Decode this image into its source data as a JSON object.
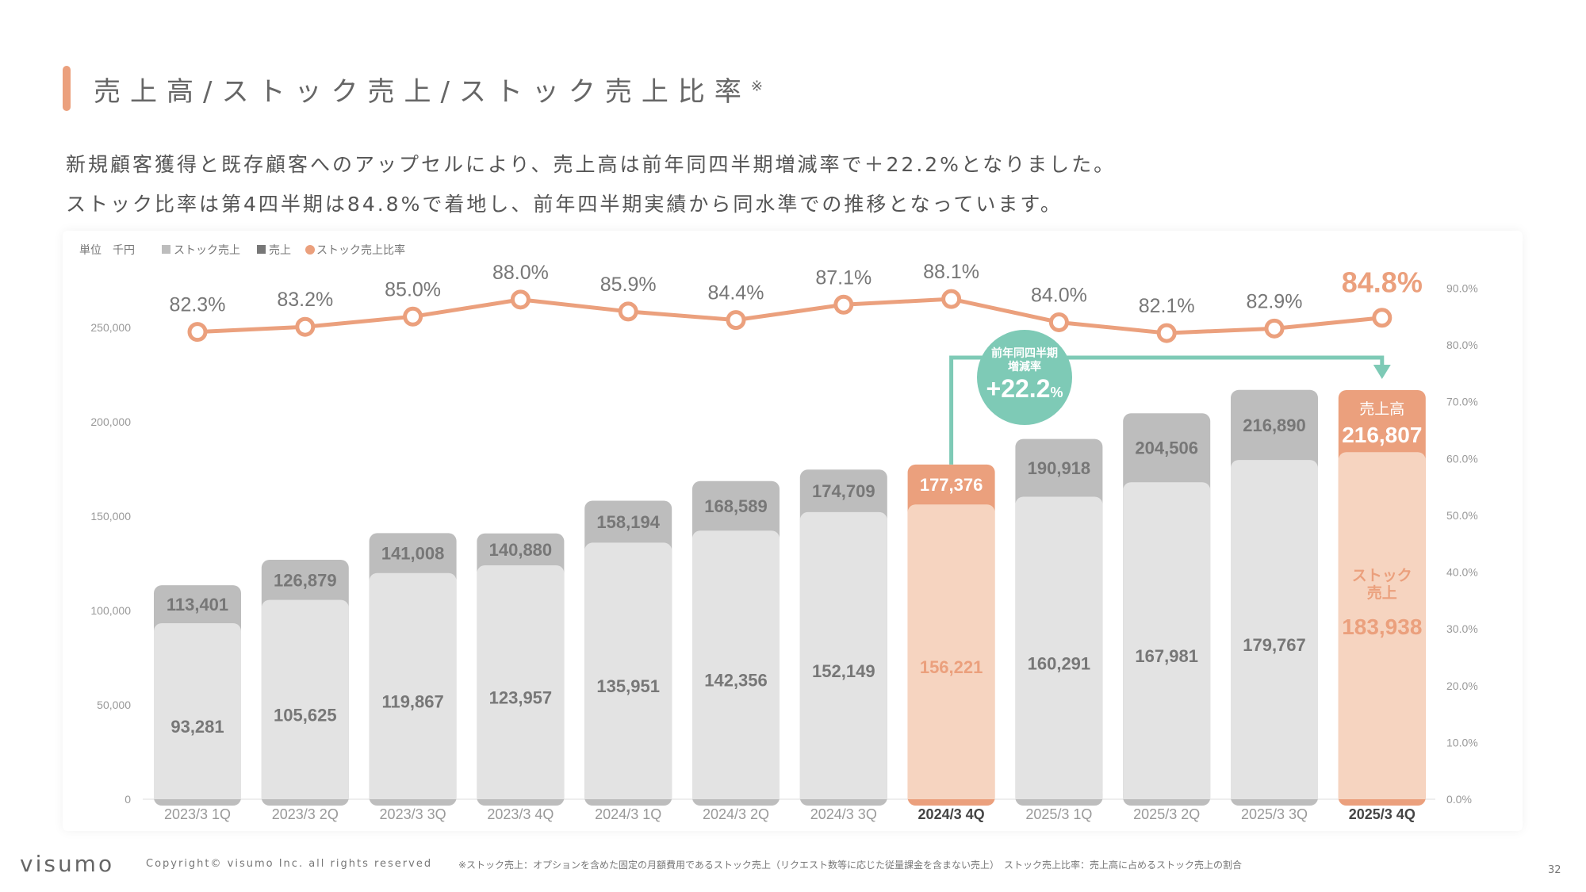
{
  "title": "売上高/ストック売上/ストック売上比率",
  "title_mark": "※",
  "subtitle_lines": [
    "新規顧客獲得と既存顧客へのアップセルにより、売上高は前年同四半期増減率で＋22.2%となりました。",
    "ストック比率は第4四半期は84.8%で着地し、前年四半期実績から同水準での推移となっています。"
  ],
  "legend": {
    "unit": "単位　千円",
    "stock": "ストック売上",
    "sales": "売上",
    "ratio": "ストック売上比率"
  },
  "annotation": {
    "line1": "前年同四半期",
    "line2": "増減率",
    "value": "+22.2",
    "pct": "%"
  },
  "last_bar": {
    "sales_label": "売上高",
    "stock_label1": "ストック",
    "stock_label2": "売上"
  },
  "colors": {
    "orange": "#eba07d",
    "light_orange": "#f6d4c0",
    "gray": "#bdbdbd",
    "light_gray": "#e3e3e3",
    "teal": "#7ecab6"
  },
  "chart_data": {
    "type": "bar",
    "categories": [
      "2023/3 1Q",
      "2023/3 2Q",
      "2023/3 3Q",
      "2023/3 4Q",
      "2024/3 1Q",
      "2024/3 2Q",
      "2024/3 3Q",
      "2024/3 4Q",
      "2025/3 1Q",
      "2025/3 2Q",
      "2025/3 3Q",
      "2025/3 4Q"
    ],
    "series": [
      {
        "name": "売上",
        "values": [
          113401,
          126879,
          141008,
          140880,
          158194,
          168589,
          174709,
          177376,
          190918,
          204506,
          216890,
          216807
        ],
        "labels": [
          "113,401",
          "126,879",
          "141,008",
          "140,880",
          "158,194",
          "168,589",
          "174,709",
          "177,376",
          "190,918",
          "204,506",
          "216,890",
          "216,807"
        ]
      },
      {
        "name": "ストック売上",
        "values": [
          93281,
          105625,
          119867,
          123957,
          135951,
          142356,
          152149,
          156221,
          160291,
          167981,
          179767,
          183938
        ],
        "labels": [
          "93,281",
          "105,625",
          "119,867",
          "123,957",
          "135,951",
          "142,356",
          "152,149",
          "156,221",
          "160,291",
          "167,981",
          "179,767",
          "183,938"
        ]
      },
      {
        "name": "ストック売上比率",
        "type": "line",
        "values": [
          82.3,
          83.2,
          85.0,
          88.0,
          85.9,
          84.4,
          87.1,
          88.1,
          84.0,
          82.1,
          82.9,
          84.8
        ],
        "labels": [
          "82.3%",
          "83.2%",
          "85.0%",
          "88.0%",
          "85.9%",
          "84.4%",
          "87.1%",
          "88.1%",
          "84.0%",
          "82.1%",
          "82.9%",
          "84.8%"
        ]
      }
    ],
    "highlight": [
      "2024/3 4Q",
      "2025/3 4Q"
    ],
    "ylim": [
      0,
      250000
    ],
    "yticks": [
      "0",
      "50,000",
      "100,000",
      "150,000",
      "200,000",
      "250,000"
    ],
    "y2lim": [
      0,
      90
    ],
    "y2ticks": [
      "0.0%",
      "10.0%",
      "20.0%",
      "30.0%",
      "40.0%",
      "50.0%",
      "60.0%",
      "70.0%",
      "80.0%",
      "90.0%"
    ]
  },
  "footer": {
    "logo": "visumo",
    "copyright": "Copyright© visumo Inc. all rights reserved",
    "note": "※ストック売上：オプションを含めた固定の月額費用であるストック売上（リクエスト数等に応じた従量課金を含まない売上）　ストック売上比率：売上高に占めるストック売上の割合",
    "page": "32"
  }
}
